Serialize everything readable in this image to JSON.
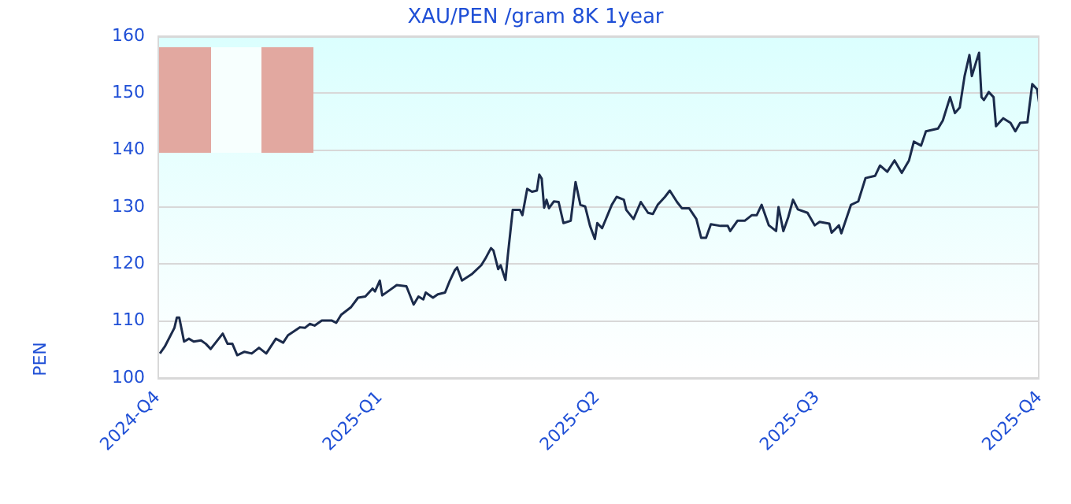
{
  "chart_data": {
    "type": "line",
    "title": "XAU/PEN /gram 8K 1year",
    "ylabel": "PEN",
    "x": [
      "2024-10-02",
      "2024-10-04",
      "2024-10-08",
      "2024-10-09",
      "2024-10-10",
      "2024-10-12",
      "2024-10-14",
      "2024-10-16",
      "2024-10-19",
      "2024-10-21",
      "2024-10-23",
      "2024-10-28",
      "2024-10-30",
      "2024-11-01",
      "2024-11-03",
      "2024-11-06",
      "2024-11-09",
      "2024-11-12",
      "2024-11-15",
      "2024-11-19",
      "2024-11-22",
      "2024-11-24",
      "2024-11-29",
      "2024-12-01",
      "2024-12-03",
      "2024-12-05",
      "2024-12-08",
      "2024-12-12",
      "2024-12-14",
      "2024-12-16",
      "2024-12-20",
      "2024-12-23",
      "2024-12-26",
      "2024-12-29",
      "2024-12-30",
      "2025-01-01",
      "2025-01-02",
      "2025-01-05",
      "2025-01-08",
      "2025-01-12",
      "2025-01-15",
      "2025-01-17",
      "2025-01-19",
      "2025-01-20",
      "2025-01-23",
      "2025-01-25",
      "2025-01-28",
      "2025-01-30",
      "2025-02-01",
      "2025-02-02",
      "2025-02-04",
      "2025-02-08",
      "2025-02-12",
      "2025-02-14",
      "2025-02-16",
      "2025-02-17",
      "2025-02-19",
      "2025-02-20",
      "2025-02-22",
      "2025-02-23",
      "2025-02-25",
      "2025-02-28",
      "2025-03-01",
      "2025-03-03",
      "2025-03-05",
      "2025-03-07",
      "2025-03-08",
      "2025-03-09",
      "2025-03-10",
      "2025-03-11",
      "2025-03-12",
      "2025-03-14",
      "2025-03-16",
      "2025-03-18",
      "2025-03-21",
      "2025-03-23",
      "2025-03-25",
      "2025-03-27",
      "2025-03-29",
      "2025-03-31",
      "2025-04-01",
      "2025-04-03",
      "2025-04-07",
      "2025-04-09",
      "2025-04-12",
      "2025-04-13",
      "2025-04-16",
      "2025-04-19",
      "2025-04-22",
      "2025-04-24",
      "2025-04-26",
      "2025-04-29",
      "2025-05-01",
      "2025-05-04",
      "2025-05-06",
      "2025-05-09",
      "2025-05-12",
      "2025-05-14",
      "2025-05-16",
      "2025-05-18",
      "2025-05-22",
      "2025-05-25",
      "2025-05-26",
      "2025-05-29",
      "2025-06-01",
      "2025-06-04",
      "2025-06-06",
      "2025-06-08",
      "2025-06-11",
      "2025-06-14",
      "2025-06-15",
      "2025-06-17",
      "2025-06-19",
      "2025-06-21",
      "2025-06-23",
      "2025-06-27",
      "2025-06-30",
      "2025-07-02",
      "2025-07-06",
      "2025-07-07",
      "2025-07-10",
      "2025-07-11",
      "2025-07-15",
      "2025-07-18",
      "2025-07-21",
      "2025-07-25",
      "2025-07-27",
      "2025-07-30",
      "2025-08-02",
      "2025-08-05",
      "2025-08-08",
      "2025-08-10",
      "2025-08-13",
      "2025-08-15",
      "2025-08-20",
      "2025-08-22",
      "2025-08-25",
      "2025-08-27",
      "2025-08-29",
      "2025-08-31",
      "2025-09-02",
      "2025-09-03",
      "2025-09-05",
      "2025-09-06",
      "2025-09-07",
      "2025-09-08",
      "2025-09-10",
      "2025-09-12",
      "2025-09-13",
      "2025-09-16",
      "2025-09-19",
      "2025-09-21",
      "2025-09-23",
      "2025-09-26",
      "2025-09-28",
      "2025-09-30",
      "2025-10-01"
    ],
    "series": [
      {
        "color": "#1b2b4b",
        "values": [
          104.3,
          105.5,
          108.8,
          110.6,
          110.6,
          106.4,
          106.9,
          106.4,
          106.6,
          106.0,
          105.1,
          107.8,
          106.0,
          106.0,
          104.0,
          104.6,
          104.3,
          105.3,
          104.3,
          106.9,
          106.2,
          107.5,
          108.9,
          108.8,
          109.5,
          109.2,
          110.1,
          110.1,
          109.7,
          111.1,
          112.4,
          114.1,
          114.3,
          115.7,
          115.2,
          117.1,
          114.5,
          115.4,
          116.3,
          116.1,
          112.9,
          114.3,
          113.8,
          115.0,
          114.1,
          114.7,
          115.0,
          117.1,
          118.9,
          119.4,
          117.1,
          118.2,
          119.8,
          121.2,
          122.8,
          122.4,
          119.1,
          119.8,
          117.2,
          121.6,
          129.5,
          129.5,
          128.6,
          133.2,
          132.7,
          132.9,
          135.7,
          135.0,
          129.9,
          131.3,
          129.8,
          131.0,
          130.9,
          127.2,
          127.6,
          134.4,
          130.4,
          130.1,
          126.7,
          124.4,
          127.2,
          126.3,
          130.4,
          131.8,
          131.3,
          129.5,
          127.9,
          130.9,
          129.0,
          128.8,
          130.4,
          131.8,
          132.9,
          130.9,
          129.8,
          129.8,
          127.9,
          124.6,
          124.6,
          127.0,
          126.7,
          126.7,
          125.8,
          127.6,
          127.6,
          128.6,
          128.6,
          130.4,
          126.8,
          125.8,
          130.0,
          125.8,
          128.2,
          131.3,
          129.6,
          129.0,
          126.8,
          127.4,
          127.1,
          125.5,
          126.8,
          125.4,
          130.4,
          131.0,
          135.1,
          135.5,
          137.3,
          136.2,
          138.2,
          136.0,
          138.2,
          141.5,
          140.8,
          143.3,
          143.8,
          145.2,
          149.3,
          146.5,
          147.5,
          153.0,
          156.7,
          153.0,
          155.8,
          157.1,
          149.3,
          148.8,
          150.2,
          149.3,
          144.2,
          145.6,
          144.8,
          143.3,
          144.8,
          144.9,
          151.6,
          150.7,
          147.9
        ]
      }
    ],
    "xlim": [
      "2024-10-01",
      "2025-10-01"
    ],
    "xticks": [
      {
        "value": "2024-10-01",
        "label": "2024-Q4"
      },
      {
        "value": "2025-01-01",
        "label": "2025-Q1"
      },
      {
        "value": "2025-04-01",
        "label": "2025-Q2"
      },
      {
        "value": "2025-07-01",
        "label": "2025-Q3"
      },
      {
        "value": "2025-10-01",
        "label": "2025-Q4"
      }
    ],
    "ylim": [
      100,
      160
    ],
    "yticks": [
      100,
      110,
      120,
      130,
      140,
      150,
      160
    ],
    "grid": "y",
    "legend": false,
    "line_style": "solid"
  }
}
